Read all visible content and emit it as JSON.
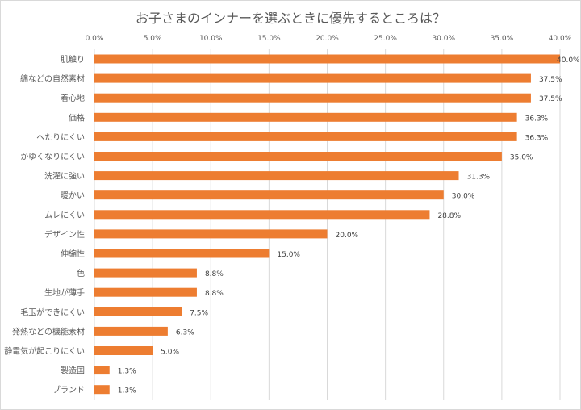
{
  "chart_data": {
    "type": "bar",
    "orientation": "horizontal",
    "title": "お子さまのインナーを選ぶときに優先するところは？",
    "categories": [
      "肌触り",
      "綿などの自然素材",
      "着心地",
      "価格",
      "へたりにくい",
      "かゆくなりにくい",
      "洗濯に強い",
      "暖かい",
      "ムレにくい",
      "デザイン性",
      "伸縮性",
      "色",
      "生地が薄手",
      "毛玉ができにくい",
      "発熱などの機能素材",
      "静電気が起こりにくい",
      "製造国",
      "ブランド"
    ],
    "values": [
      40.0,
      37.5,
      37.5,
      36.3,
      36.3,
      35.0,
      31.3,
      30.0,
      28.8,
      20.0,
      15.0,
      8.8,
      8.8,
      7.5,
      6.3,
      5.0,
      1.3,
      1.3
    ],
    "data_labels": [
      "40.0%",
      "37.5%",
      "37.5%",
      "36.3%",
      "36.3%",
      "35.0%",
      "31.3%",
      "30.0%",
      "28.8%",
      "20.0%",
      "15.0%",
      "8.8%",
      "8.8%",
      "7.5%",
      "6.3%",
      "5.0%",
      "1.3%",
      "1.3%"
    ],
    "xlim": [
      0,
      40
    ],
    "x_ticks": [
      "0.0%",
      "5.0%",
      "10.0%",
      "15.0%",
      "20.0%",
      "25.0%",
      "30.0%",
      "35.0%",
      "40.0%"
    ],
    "x_axis_position": "top",
    "grid": true,
    "bar_color": "#ED7D31",
    "xlabel": "",
    "ylabel": ""
  }
}
